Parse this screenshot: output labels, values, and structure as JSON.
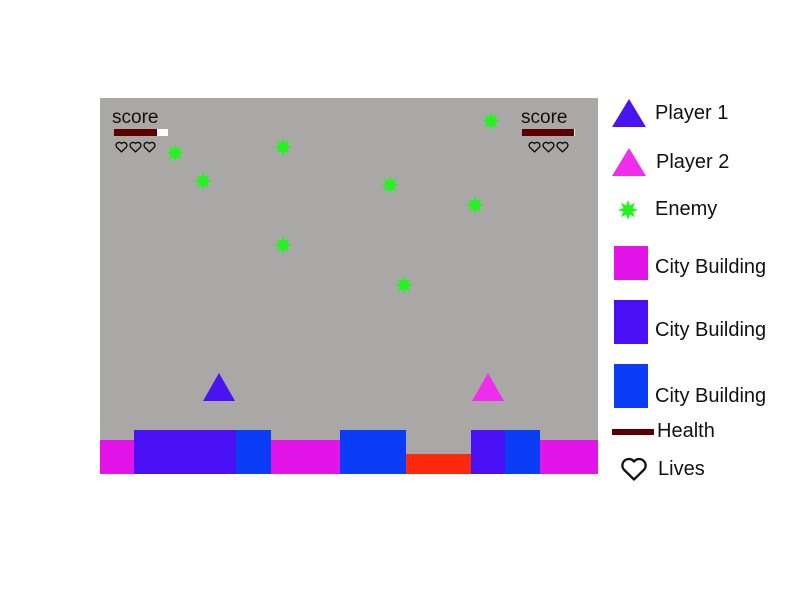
{
  "colors": {
    "field_bg": "#a9a8a7",
    "player1": "#4a14f2",
    "player2": "#f02ded",
    "enemy": "#22f51d",
    "building_magenta": "#e314e8",
    "building_violet": "#4a10f5",
    "building_blue": "#0a3df5",
    "damaged_ground": "#fb2a0f",
    "health": "#5a0000"
  },
  "hud": {
    "player1": {
      "score_label": "score",
      "health_fraction": 0.8,
      "lives": 3
    },
    "player2": {
      "score_label": "score",
      "health_fraction": 0.98,
      "lives": 3
    }
  },
  "enemies": {
    "count": 9,
    "icon": "green-starburst-icon"
  },
  "players": {
    "player1": {
      "icon": "blue-triangle-icon"
    },
    "player2": {
      "icon": "pink-triangle-icon"
    }
  },
  "legend": {
    "player1": "Player 1",
    "player2": "Player 2",
    "enemy": "Enemy",
    "building_magenta": "City Building",
    "building_violet": "City Building",
    "building_blue": "City Building",
    "health": "Health",
    "lives": "Lives"
  }
}
